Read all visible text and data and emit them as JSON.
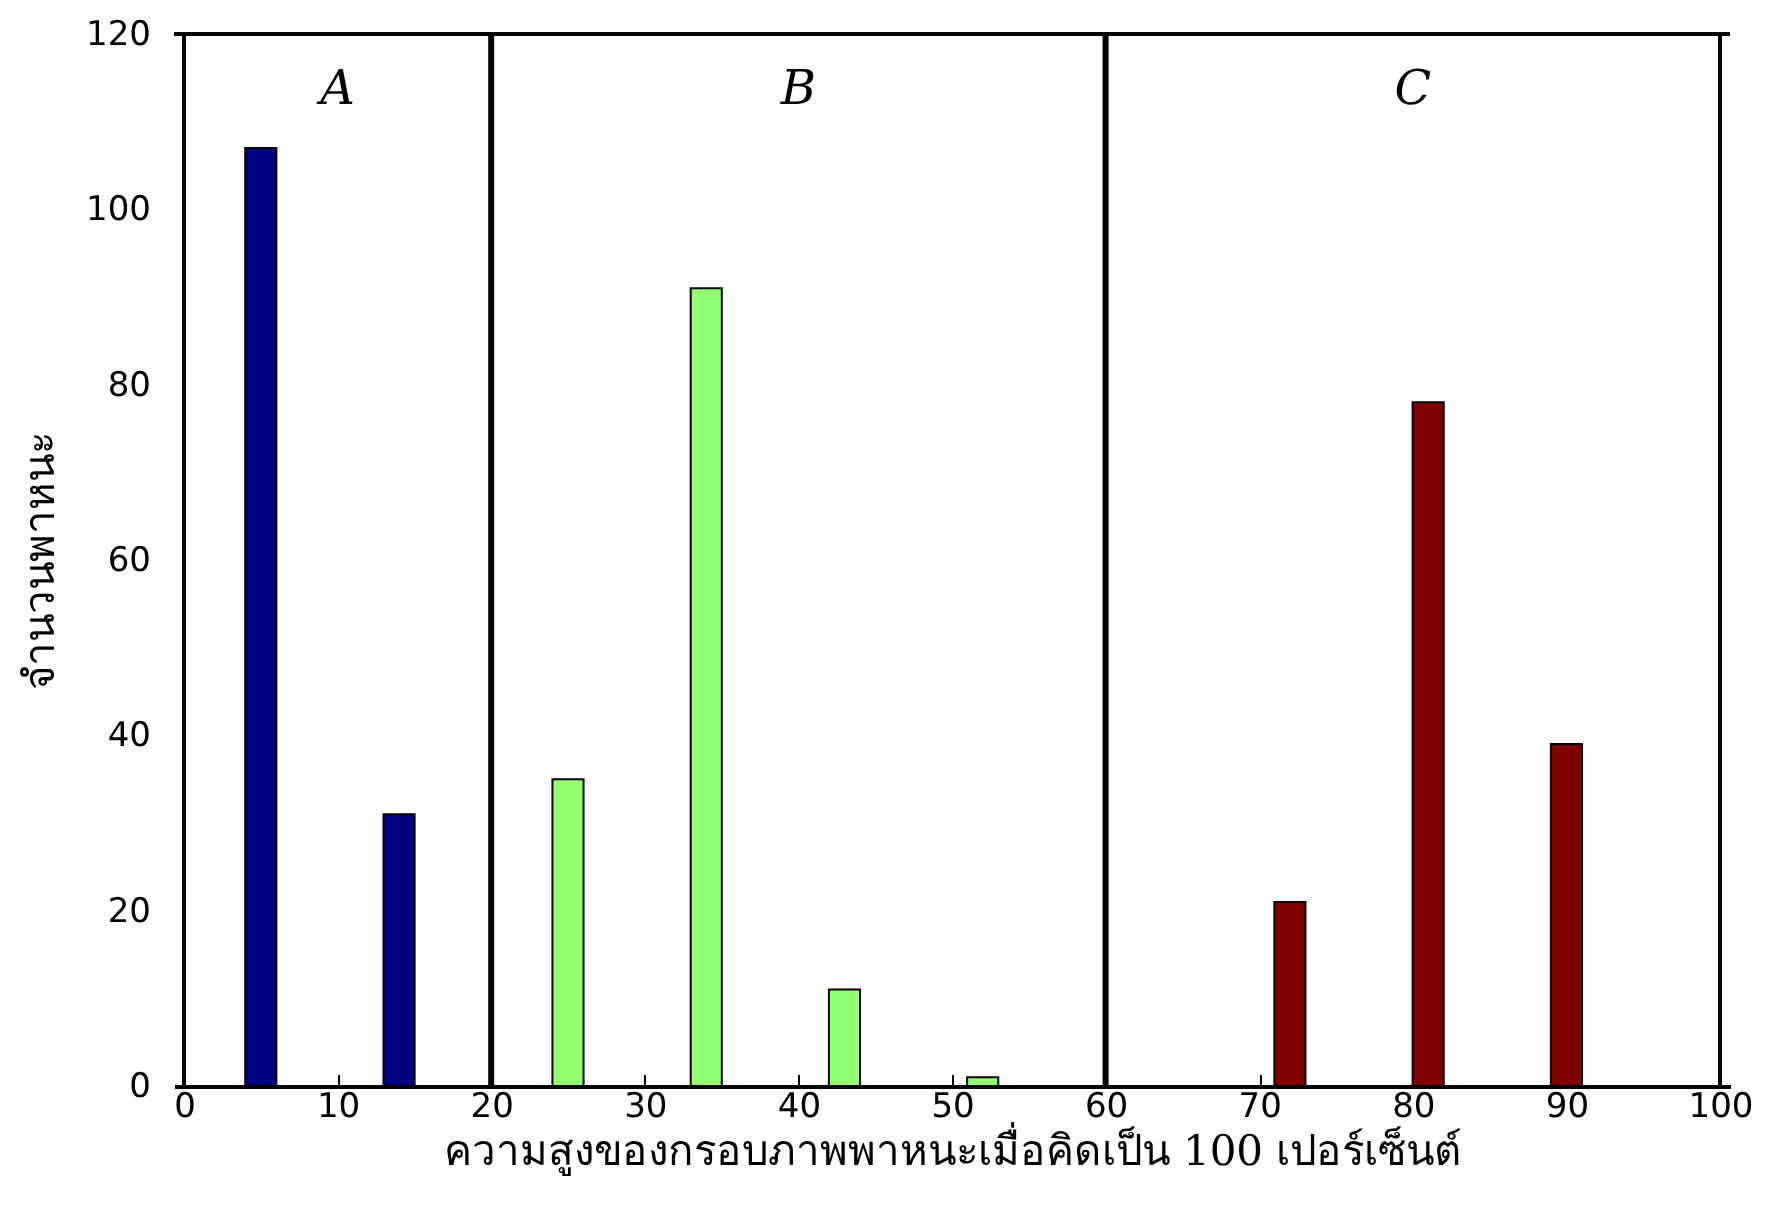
{
  "chart_data": {
    "type": "bar",
    "xlabel": "ความสูงของกรอบภาพพาหนะเมื่อคิดเป็น 100 เปอร์เซ็นต์",
    "ylabel": "จำนวนพาหนะ",
    "series": [
      {
        "color": "#000080",
        "x": [
          5,
          14
        ],
        "values": [
          107,
          31
        ]
      },
      {
        "color": "#90ff70",
        "x": [
          25,
          34,
          43,
          52
        ],
        "values": [
          35,
          91,
          11,
          1
        ]
      },
      {
        "color": "#800000",
        "x": [
          72,
          81,
          90
        ],
        "values": [
          21,
          78,
          39
        ]
      }
    ],
    "ref_lines": [
      {
        "axis": "x",
        "value": 20
      },
      {
        "axis": "x",
        "value": 60
      }
    ],
    "annotations": [
      "A",
      "B",
      "C"
    ],
    "xlim": [
      0,
      100
    ],
    "xticks": [
      0,
      10,
      20,
      30,
      40,
      50,
      60,
      70,
      80,
      90,
      100
    ],
    "ylim": [
      0,
      120
    ],
    "yticks": [
      0,
      20,
      40,
      60,
      80,
      100,
      120
    ],
    "grid": false
  }
}
